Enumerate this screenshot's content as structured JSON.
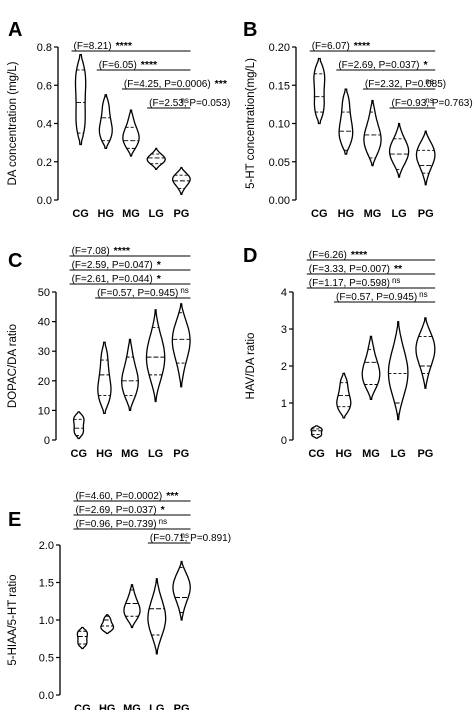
{
  "chart_data": [
    {
      "panel": "A",
      "type": "violin",
      "ylabel": "DA concentration (mg/L)",
      "ylim": [
        0,
        0.8
      ],
      "yticks": [
        "0.0",
        "0.2",
        "0.4",
        "0.6",
        "0.8"
      ],
      "categories": [
        "CG",
        "HG",
        "MG",
        "LG",
        "PG"
      ],
      "groups": [
        {
          "name": "CG",
          "min": 0.29,
          "q1": 0.35,
          "median": 0.51,
          "q3": 0.68,
          "max": 0.76
        },
        {
          "name": "HG",
          "min": 0.27,
          "q1": 0.31,
          "median": 0.43,
          "q3": 0.54,
          "max": 0.55
        },
        {
          "name": "MG",
          "min": 0.23,
          "q1": 0.27,
          "median": 0.31,
          "q3": 0.38,
          "max": 0.47
        },
        {
          "name": "LG",
          "min": 0.16,
          "q1": 0.19,
          "median": 0.22,
          "q3": 0.24,
          "max": 0.27
        },
        {
          "name": "PG",
          "min": 0.03,
          "q1": 0.06,
          "median": 0.1,
          "q3": 0.13,
          "max": 0.17
        }
      ],
      "comparisons": [
        {
          "label": "(F=8.21)",
          "stars": "****",
          "ns": "",
          "from": "CG",
          "to": "PG"
        },
        {
          "label": "(F=6.05)",
          "stars": "****",
          "ns": "",
          "from": "HG",
          "to": "PG"
        },
        {
          "label": "(F=4.25, P=0.0006)",
          "stars": "***",
          "ns": "",
          "from": "MG",
          "to": "PG"
        },
        {
          "label": "(F=2.53, P=0.053)",
          "stars": "",
          "ns": "ns",
          "from": "LG",
          "to": "PG"
        }
      ]
    },
    {
      "panel": "B",
      "type": "violin",
      "ylabel": "5-HT concentration(mg/L)",
      "ylim": [
        0,
        0.2
      ],
      "yticks": [
        "0.00",
        "0.05",
        "0.10",
        "0.15",
        "0.20"
      ],
      "categories": [
        "CG",
        "HG",
        "MG",
        "LG",
        "PG"
      ],
      "groups": [
        {
          "name": "CG",
          "min": 0.1,
          "q1": 0.115,
          "median": 0.135,
          "q3": 0.165,
          "max": 0.185
        },
        {
          "name": "HG",
          "min": 0.06,
          "q1": 0.065,
          "median": 0.09,
          "q3": 0.115,
          "max": 0.145
        },
        {
          "name": "MG",
          "min": 0.045,
          "q1": 0.055,
          "median": 0.085,
          "q3": 0.115,
          "max": 0.13
        },
        {
          "name": "LG",
          "min": 0.03,
          "q1": 0.04,
          "median": 0.06,
          "q3": 0.08,
          "max": 0.1
        },
        {
          "name": "PG",
          "min": 0.02,
          "q1": 0.035,
          "median": 0.045,
          "q3": 0.065,
          "max": 0.09
        }
      ],
      "comparisons": [
        {
          "label": "(F=6.07)",
          "stars": "****",
          "ns": "",
          "from": "CG",
          "to": "PG"
        },
        {
          "label": "(F=2.69, P=0.037)",
          "stars": "*",
          "ns": "",
          "from": "HG",
          "to": "PG"
        },
        {
          "label": "(F=2.32, P=0.085)",
          "stars": "",
          "ns": "ns",
          "from": "MG",
          "to": "PG"
        },
        {
          "label": "(F=0.93, P=0.763)",
          "stars": "",
          "ns": "ns",
          "from": "LG",
          "to": "PG"
        }
      ]
    },
    {
      "panel": "C",
      "type": "violin",
      "ylabel": "DOPAC/DA ratio",
      "ylim": [
        0,
        50
      ],
      "yticks": [
        "0",
        "10",
        "20",
        "30",
        "40",
        "50"
      ],
      "categories": [
        "CG",
        "HG",
        "MG",
        "LG",
        "PG"
      ],
      "groups": [
        {
          "name": "CG",
          "min": 0.5,
          "q1": 1.5,
          "median": 4,
          "q3": 7,
          "max": 9.5
        },
        {
          "name": "HG",
          "min": 9,
          "q1": 15,
          "median": 22,
          "q3": 27,
          "max": 33
        },
        {
          "name": "MG",
          "min": 10,
          "q1": 15,
          "median": 20,
          "q3": 28,
          "max": 34
        },
        {
          "name": "LG",
          "min": 13,
          "q1": 22,
          "median": 28,
          "q3": 38,
          "max": 44
        },
        {
          "name": "PG",
          "min": 18,
          "q1": 26,
          "median": 34,
          "q3": 43,
          "max": 46
        }
      ],
      "comparisons": [
        {
          "label": "(F=7.08)",
          "stars": "****",
          "ns": "",
          "from": "CG",
          "to": "PG"
        },
        {
          "label": "(F=2.59, P=0.047)",
          "stars": "*",
          "ns": "",
          "from": "CG",
          "to": "PG"
        },
        {
          "label": "(F=2.61, P=0.044)",
          "stars": "*",
          "ns": "",
          "from": "CG",
          "to": "PG"
        },
        {
          "label": "(F=0.57, P=0.945)",
          "stars": "",
          "ns": "ns",
          "from": "HG",
          "to": "PG"
        }
      ]
    },
    {
      "panel": "D",
      "type": "violin",
      "ylabel": "HAV/DA ratio",
      "ylim": [
        0,
        4
      ],
      "yticks": [
        "0",
        "1",
        "2",
        "3",
        "4"
      ],
      "categories": [
        "CG",
        "HG",
        "MG",
        "LG",
        "PG"
      ],
      "groups": [
        {
          "name": "CG",
          "min": 0.05,
          "q1": 0.15,
          "median": 0.25,
          "q3": 0.3,
          "max": 0.38
        },
        {
          "name": "HG",
          "min": 0.6,
          "q1": 0.9,
          "median": 1.2,
          "q3": 1.55,
          "max": 1.8
        },
        {
          "name": "MG",
          "min": 1.1,
          "q1": 1.5,
          "median": 2.1,
          "q3": 2.45,
          "max": 2.8
        },
        {
          "name": "LG",
          "min": 0.55,
          "q1": 0.7,
          "median": 1.0,
          "q3": 1.8,
          "max": 3.2
        },
        {
          "name": "PG",
          "min": 1.4,
          "q1": 1.8,
          "median": 2.0,
          "q3": 2.8,
          "max": 3.3
        }
      ],
      "comparisons": [
        {
          "label": "(F=6.26)",
          "stars": "****",
          "ns": "",
          "from": "CG",
          "to": "PG"
        },
        {
          "label": "(F=3.33, P=0.007)",
          "stars": "**",
          "ns": "",
          "from": "CG",
          "to": "PG"
        },
        {
          "label": "(F=1.17, P=0.598)",
          "stars": "",
          "ns": "ns",
          "from": "CG",
          "to": "PG"
        },
        {
          "label": "(F=0.57, P=0.945)",
          "stars": "",
          "ns": "ns",
          "from": "HG",
          "to": "PG"
        }
      ]
    },
    {
      "panel": "E",
      "type": "violin",
      "ylabel": "5-HIAA/5-HT ratio",
      "ylim": [
        0,
        2.0
      ],
      "yticks": [
        "0.0",
        "0.5",
        "1.0",
        "1.5",
        "2.0"
      ],
      "categories": [
        "CG",
        "HG",
        "MG",
        "LG",
        "PG"
      ],
      "groups": [
        {
          "name": "CG",
          "min": 0.62,
          "q1": 0.68,
          "median": 0.78,
          "q3": 0.85,
          "max": 0.9
        },
        {
          "name": "HG",
          "min": 0.82,
          "q1": 0.92,
          "median": 1.0,
          "q3": 1.05,
          "max": 1.07
        },
        {
          "name": "MG",
          "min": 0.9,
          "q1": 1.05,
          "median": 1.22,
          "q3": 1.4,
          "max": 1.47
        },
        {
          "name": "LG",
          "min": 0.55,
          "q1": 0.8,
          "median": 1.15,
          "q3": 1.5,
          "max": 1.55
        },
        {
          "name": "PG",
          "min": 1.0,
          "q1": 1.1,
          "median": 1.3,
          "q3": 1.7,
          "max": 1.78
        }
      ],
      "comparisons": [
        {
          "label": "(F=4.60, P=0.0002)",
          "stars": "***",
          "ns": "",
          "from": "CG",
          "to": "PG"
        },
        {
          "label": "(F=2.69, P=0.037)",
          "stars": "*",
          "ns": "",
          "from": "CG",
          "to": "PG"
        },
        {
          "label": "(F=0.96, P=0.739)",
          "stars": "",
          "ns": "ns",
          "from": "CG",
          "to": "PG"
        },
        {
          "label": "(F=0.71, P=0.891)",
          "stars": "",
          "ns": "ns",
          "from": "LG",
          "to": "PG"
        }
      ]
    }
  ]
}
